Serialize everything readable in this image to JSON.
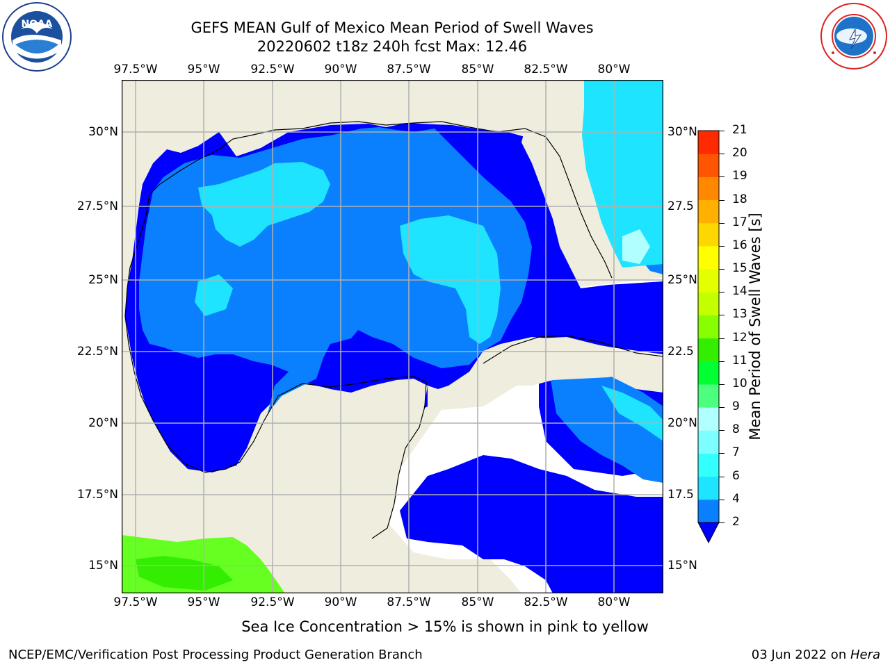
{
  "header": {
    "title_line1": "GEFS MEAN Gulf of Mexico Mean Period of Swell Waves",
    "title_line2": "20220602 t18z 240h fcst   Max: 12.46"
  },
  "logos": {
    "left": {
      "name": "NOAA",
      "ring_text": "NATIONAL OCEANIC AND ATMOSPHERIC ADMINISTRATION",
      "bottom_text": "U.S. DEPARTMENT OF COMMERCE"
    },
    "right": {
      "ring_text": "NATIONAL WEATHER SERVICE"
    }
  },
  "map": {
    "lon_labels": [
      "97.5°W",
      "95°W",
      "92.5°W",
      "90°W",
      "87.5°W",
      "85°W",
      "82.5°W",
      "80°W"
    ],
    "lat_labels_left": [
      "30°N",
      "27.5°N",
      "25°N",
      "22.5°N",
      "20°N",
      "17.5°N",
      "15°N"
    ],
    "lat_labels_right": [
      "30°N",
      "27.5",
      "25°N",
      "22.5",
      "20°N",
      "17.5",
      "15°N"
    ]
  },
  "colorbar": {
    "label": "Mean Period of Swell Waves [s]",
    "ticks": [
      "2",
      "4",
      "6",
      "7",
      "8",
      "9",
      "10",
      "11",
      "12",
      "13",
      "14",
      "15",
      "16",
      "17",
      "18",
      "19",
      "20",
      "21"
    ],
    "colors": [
      "#0a80ff",
      "#1ee4ff",
      "#33ffff",
      "#7dffff",
      "#b2ffff",
      "#4dff7e",
      "#00ff33",
      "#33ee00",
      "#88ff00",
      "#c4ff00",
      "#e4ff00",
      "#ffff00",
      "#ffd700",
      "#ffb000",
      "#ff8800",
      "#ff5500",
      "#ff2a00"
    ],
    "extend_color": "#0000ff"
  },
  "caption": "Sea Ice Concentration > 15% is shown in pink to yellow",
  "footer": {
    "left": "NCEP/EMC/Verification Post Processing Product Generation Branch",
    "date": "03 Jun 2022 on ",
    "host": "Hera"
  }
}
